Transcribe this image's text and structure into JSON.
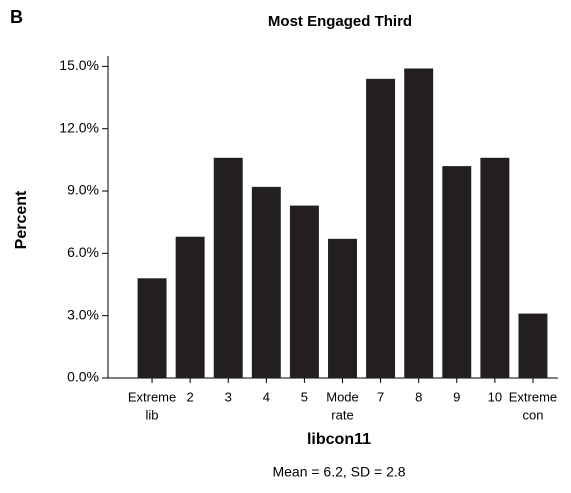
{
  "chart_data": {
    "type": "bar",
    "panel_label": "B",
    "title": "Most Engaged Third",
    "xlabel": "libcon11",
    "ylabel": "Percent",
    "subtitle": "Mean = 6.2, SD = 2.8",
    "categories": [
      [
        "Extreme",
        "lib"
      ],
      [
        "2"
      ],
      [
        "3"
      ],
      [
        "4"
      ],
      [
        "5"
      ],
      [
        "Mode",
        "rate"
      ],
      [
        "7"
      ],
      [
        "8"
      ],
      [
        "9"
      ],
      [
        "10"
      ],
      [
        "Extreme",
        "con"
      ]
    ],
    "values": [
      4.8,
      6.8,
      10.6,
      9.2,
      8.3,
      6.7,
      14.4,
      14.9,
      10.2,
      10.6,
      3.1
    ],
    "color": "#231f20",
    "ylim": [
      0,
      15.5
    ],
    "yticks": [
      {
        "value": 0,
        "label": "0.0%"
      },
      {
        "value": 3,
        "label": "3.0%"
      },
      {
        "value": 6,
        "label": "6.0%"
      },
      {
        "value": 9,
        "label": "9.0%"
      },
      {
        "value": 12,
        "label": "12.0%"
      },
      {
        "value": 15,
        "label": "15.0%"
      }
    ],
    "grid": false
  }
}
